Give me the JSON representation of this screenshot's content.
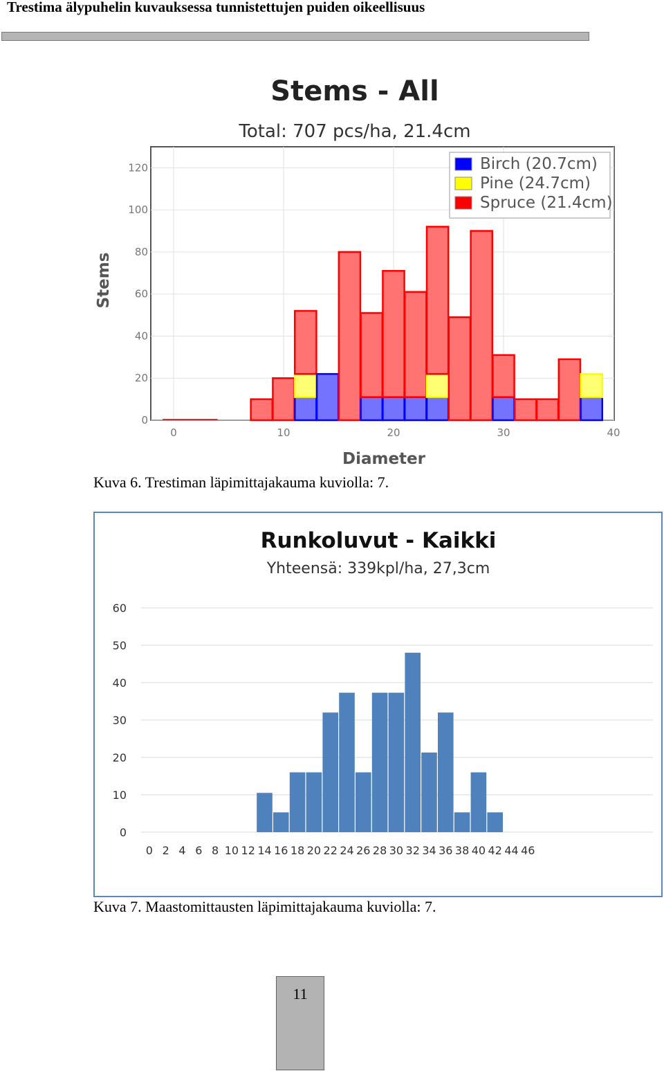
{
  "header": {
    "title": "Trestima älypuhelin kuvauksessa tunnistettujen puiden oikeellisuus"
  },
  "captions": {
    "fig1": "Kuva 6. Trestiman läpimittajakauma kuviolla: 7.",
    "fig2": "Kuva 7. Maastomittausten läpimittajakauma kuviolla: 7."
  },
  "page_number": "11",
  "chart_data": [
    {
      "type": "bar",
      "stacked": true,
      "title": "Stems - All",
      "subtitle": "Total: 707 pcs/ha, 21.4cm",
      "xlabel": "Diameter",
      "ylabel": "Stems",
      "xlim": [
        0,
        40
      ],
      "ylim": [
        0,
        130
      ],
      "x_ticks": [
        "0",
        "10",
        "20",
        "30",
        "40"
      ],
      "y_ticks": [
        "0",
        "20",
        "40",
        "60",
        "80",
        "100",
        "120"
      ],
      "grid": true,
      "legend_position": "top-right",
      "x": [
        8,
        10,
        12,
        14,
        16,
        18,
        20,
        22,
        24,
        26,
        28,
        30,
        32,
        34,
        36,
        38
      ],
      "series": [
        {
          "name": "Birch (20.7cm)",
          "color": "#0000ff",
          "values": [
            0,
            0,
            11,
            22,
            0,
            11,
            11,
            11,
            11,
            0,
            0,
            11,
            0,
            0,
            0,
            11
          ]
        },
        {
          "name": "Pine (24.7cm)",
          "color": "#ffff00",
          "values": [
            0,
            0,
            11,
            0,
            0,
            0,
            0,
            0,
            11,
            0,
            0,
            0,
            0,
            0,
            0,
            11
          ]
        },
        {
          "name": "Spruce (21.4cm)",
          "color": "#ff0000",
          "values": [
            10,
            20,
            30,
            0,
            80,
            40,
            60,
            50,
            70,
            49,
            90,
            20,
            10,
            10,
            29,
            0
          ]
        }
      ]
    },
    {
      "type": "bar",
      "title": "Runkoluvut - Kaikki",
      "subtitle": "Yhteensä: 339kpl/ha, 27,3cm",
      "xlabel": "",
      "ylabel": "",
      "ylim": [
        0,
        60
      ],
      "y_ticks": [
        "0",
        "10",
        "20",
        "30",
        "40",
        "50",
        "60"
      ],
      "grid": true,
      "color": "#4f81bd",
      "categories": [
        "0",
        "2",
        "4",
        "6",
        "8",
        "10",
        "12",
        "14",
        "16",
        "18",
        "20",
        "22",
        "24",
        "26",
        "28",
        "30",
        "32",
        "34",
        "36",
        "38",
        "40",
        "42",
        "44",
        "46"
      ],
      "values": [
        0,
        0,
        0,
        0,
        0,
        0,
        0,
        10.5,
        5.3,
        16,
        16,
        32,
        37.3,
        16,
        37.3,
        37.3,
        48,
        21.3,
        32,
        5.3,
        16,
        5.3,
        0,
        0
      ]
    }
  ]
}
